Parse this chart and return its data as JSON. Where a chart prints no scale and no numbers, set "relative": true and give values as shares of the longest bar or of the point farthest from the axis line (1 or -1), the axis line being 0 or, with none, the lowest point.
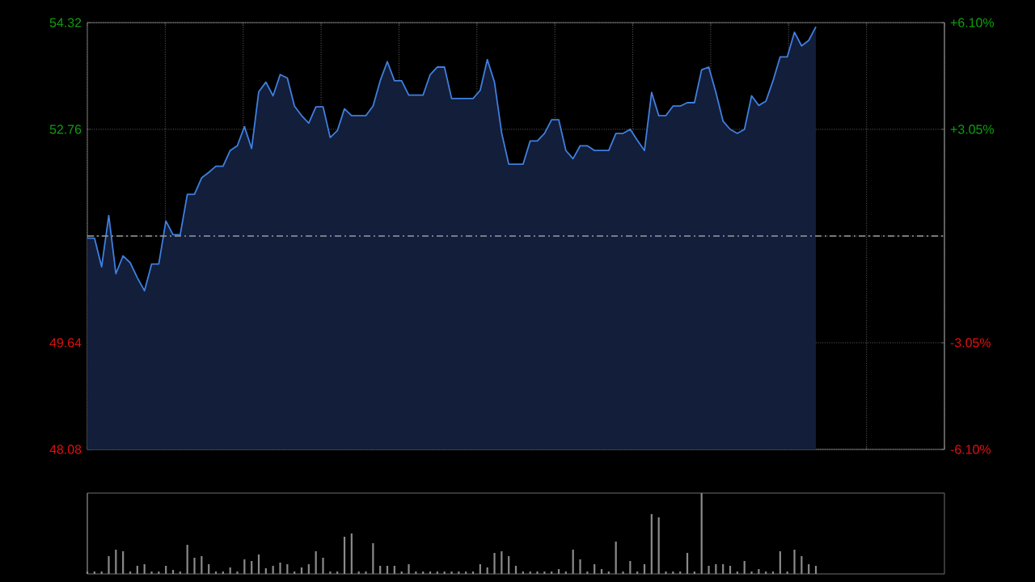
{
  "chart_data": [
    {
      "type": "area",
      "categories": [
        null,
        null,
        null,
        null,
        null,
        null,
        null,
        null,
        null,
        null,
        null,
        null,
        null,
        null,
        null,
        null,
        null,
        null,
        null,
        null,
        null,
        null,
        null,
        null,
        null,
        null,
        null,
        null,
        null,
        null,
        null,
        null,
        null,
        null,
        null,
        null,
        null,
        null,
        null,
        null,
        null,
        null,
        null,
        null,
        null,
        null,
        null,
        null,
        null,
        null,
        null,
        null,
        null,
        null,
        null,
        null,
        null,
        null,
        null,
        null,
        null,
        null,
        null,
        null,
        null,
        null,
        null,
        null,
        null,
        null,
        null,
        null,
        null,
        null,
        null,
        null,
        null,
        null,
        null,
        null,
        null,
        null,
        null,
        null,
        null,
        null,
        null,
        null,
        null,
        null,
        null,
        null,
        null,
        null,
        null,
        null,
        null,
        null,
        null,
        null,
        null,
        null,
        null,
        null,
        null,
        null,
        null,
        null,
        null,
        null,
        null,
        null,
        null,
        null,
        null,
        null,
        null,
        null,
        null,
        null,
        null
      ],
      "series": [
        {
          "color": "#3f7fe0",
          "values": [
            51.17,
            51.17,
            50.75,
            51.5,
            50.65,
            50.91,
            50.81,
            50.59,
            50.4,
            50.79,
            50.79,
            51.42,
            51.22,
            51.22,
            51.81,
            51.81,
            52.05,
            52.13,
            52.22,
            52.22,
            52.45,
            52.52,
            52.8,
            52.48,
            53.31,
            53.45,
            53.25,
            53.56,
            53.51,
            53.1,
            52.96,
            52.85,
            53.09,
            53.09,
            52.64,
            52.74,
            53.06,
            52.96,
            52.96,
            52.96,
            53.1,
            53.47,
            53.75,
            53.47,
            53.47,
            53.26,
            53.26,
            53.26,
            53.56,
            53.67,
            53.67,
            53.21,
            53.21,
            53.21,
            53.21,
            53.33,
            53.78,
            53.45,
            52.71,
            52.25,
            52.25,
            52.25,
            52.59,
            52.59,
            52.7,
            52.9,
            52.9,
            52.45,
            52.33,
            52.52,
            52.52,
            52.45,
            52.45,
            52.45,
            52.7,
            52.7,
            52.76,
            52.6,
            52.45,
            53.3,
            52.96,
            52.96,
            53.1,
            53.1,
            53.15,
            53.15,
            53.63,
            53.67,
            53.3,
            52.88,
            52.76,
            52.7,
            52.76,
            53.25,
            53.11,
            53.17,
            53.47,
            53.82,
            53.82,
            54.18,
            53.98,
            54.06,
            54.26,
            null,
            null,
            null,
            null,
            null,
            null,
            null,
            null,
            null,
            null,
            null,
            null,
            null,
            null,
            null,
            null,
            null,
            null
          ]
        }
      ],
      "ylim": [
        48.08,
        54.32
      ],
      "yticks": [
        48.08,
        49.64,
        {
          "value": 51.2,
          "label": null
        },
        52.76,
        54.32
      ],
      "y2lim": [
        -6.1,
        6.1
      ],
      "y2ticks": [
        {
          "value": -6.1,
          "label": "-6.10%"
        },
        {
          "value": -3.05,
          "label": "-3.05%"
        },
        {
          "value": 3.05,
          "label": "+3.05%"
        },
        {
          "value": 6.1,
          "label": "+6.10%"
        }
      ],
      "ref_lines": [
        {
          "axis": "y",
          "value": 51.2,
          "color": "#9a9a9a",
          "line_style": "dashed"
        }
      ],
      "grid": true,
      "tick_labels": "y"
    },
    {
      "type": "bar",
      "relative": true,
      "color": "#8a8a8a",
      "categories": [
        null,
        null,
        null,
        null,
        null,
        null,
        null,
        null,
        null,
        null,
        null,
        null,
        null,
        null,
        null,
        null,
        null,
        null,
        null,
        null,
        null,
        null,
        null,
        null,
        null,
        null,
        null,
        null,
        null,
        null,
        null,
        null,
        null,
        null,
        null,
        null,
        null,
        null,
        null,
        null,
        null,
        null,
        null,
        null,
        null,
        null,
        null,
        null,
        null,
        null,
        null,
        null,
        null,
        null,
        null,
        null,
        null,
        null,
        null,
        null,
        null,
        null,
        null,
        null,
        null,
        null,
        null,
        null,
        null,
        null,
        null,
        null,
        null,
        null,
        null,
        null,
        null,
        null,
        null,
        null,
        null,
        null,
        null,
        null,
        null,
        null,
        null,
        null,
        null,
        null,
        null,
        null,
        null,
        null,
        null,
        null,
        null,
        null,
        null,
        null,
        null,
        null,
        null,
        null,
        null,
        null,
        null,
        null,
        null,
        null,
        null,
        null,
        null,
        null,
        null,
        null,
        null,
        null,
        null,
        null,
        null
      ],
      "values": [
        0.03,
        0.03,
        0.03,
        0.22,
        0.3,
        0.28,
        0.03,
        0.1,
        0.12,
        0.03,
        0.03,
        0.1,
        0.05,
        0.03,
        0.36,
        0.2,
        0.22,
        0.12,
        0.03,
        0.03,
        0.08,
        0.03,
        0.18,
        0.16,
        0.24,
        0.07,
        0.1,
        0.14,
        0.12,
        0.03,
        0.08,
        0.12,
        0.28,
        0.2,
        0.03,
        0.03,
        0.46,
        0.5,
        0.03,
        0.03,
        0.38,
        0.1,
        0.1,
        0.1,
        0.03,
        0.12,
        0.03,
        0.03,
        0.03,
        0.03,
        0.03,
        0.03,
        0.03,
        0.03,
        0.03,
        0.12,
        0.08,
        0.26,
        0.28,
        0.22,
        0.1,
        0.03,
        0.03,
        0.03,
        0.03,
        0.03,
        0.06,
        0.03,
        0.3,
        0.18,
        0.03,
        0.12,
        0.06,
        0.03,
        0.4,
        0.03,
        0.16,
        0.03,
        0.12,
        0.74,
        0.7,
        0.03,
        0.03,
        0.03,
        0.26,
        0.03,
        1.0,
        0.1,
        0.12,
        0.12,
        0.1,
        0.03,
        0.16,
        0.03,
        0.06,
        0.03,
        0.03,
        0.28,
        0.03,
        0.3,
        0.22,
        0.12,
        0.1,
        null,
        null,
        null,
        null,
        null,
        null,
        null,
        null,
        null,
        null,
        null,
        null,
        null,
        null,
        null,
        null,
        null,
        null
      ]
    }
  ]
}
